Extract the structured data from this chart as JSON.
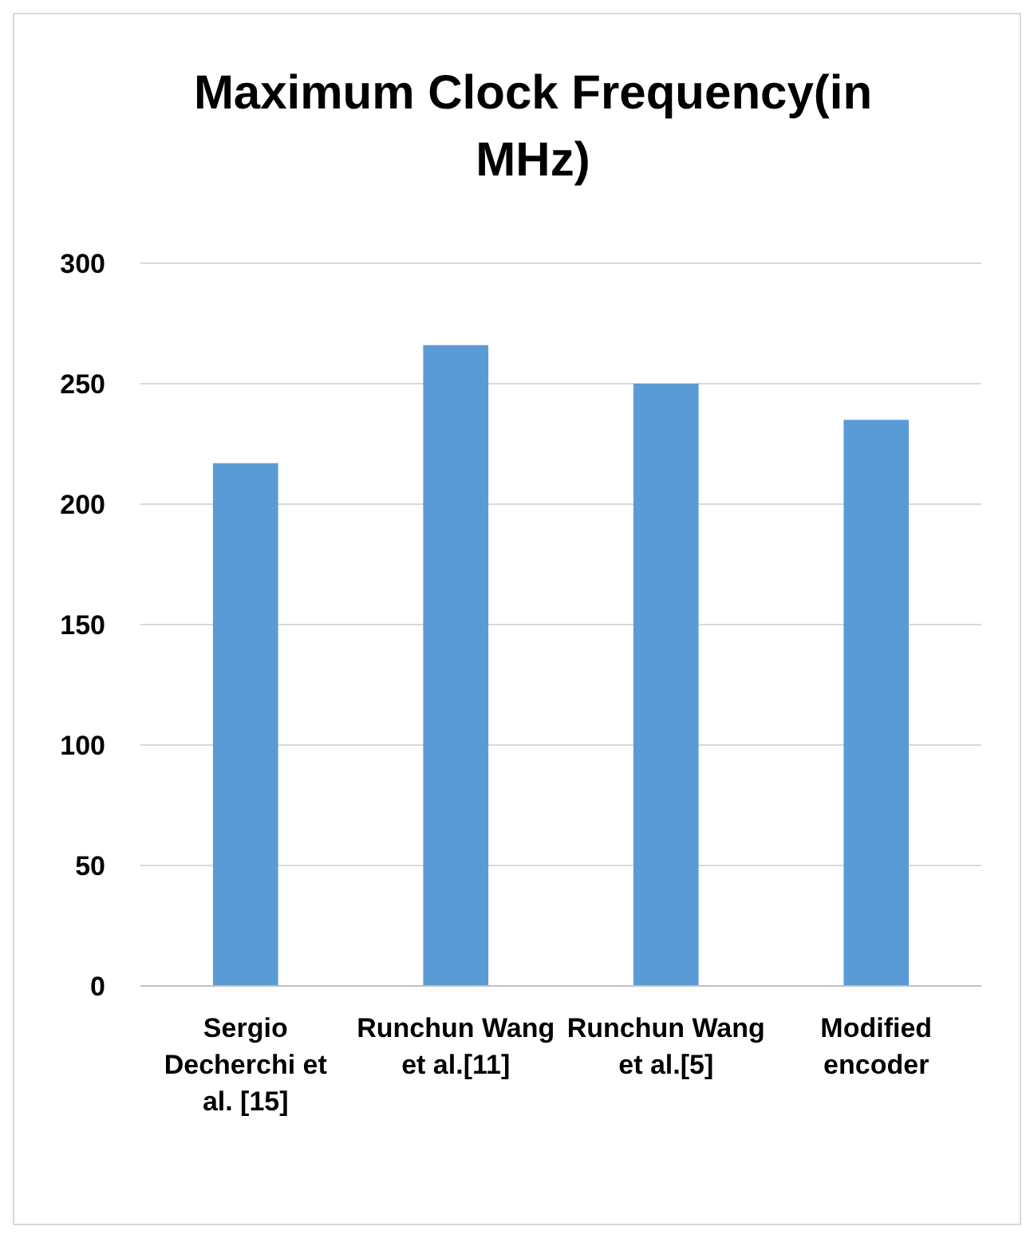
{
  "chart_data": {
    "type": "bar",
    "title": "Maximum Clock Frequency(in MHz)",
    "categories": [
      "Sergio Decherchi et al. [15]",
      "Runchun Wang et al.[11]",
      "Runchun Wang et al.[5]",
      "Modified encoder"
    ],
    "values": [
      217,
      266,
      250,
      235
    ],
    "color": "#5b9bd5",
    "ylim": [
      0,
      300
    ],
    "yticks": [
      0,
      50,
      100,
      150,
      200,
      250,
      300
    ],
    "grid": "y"
  }
}
